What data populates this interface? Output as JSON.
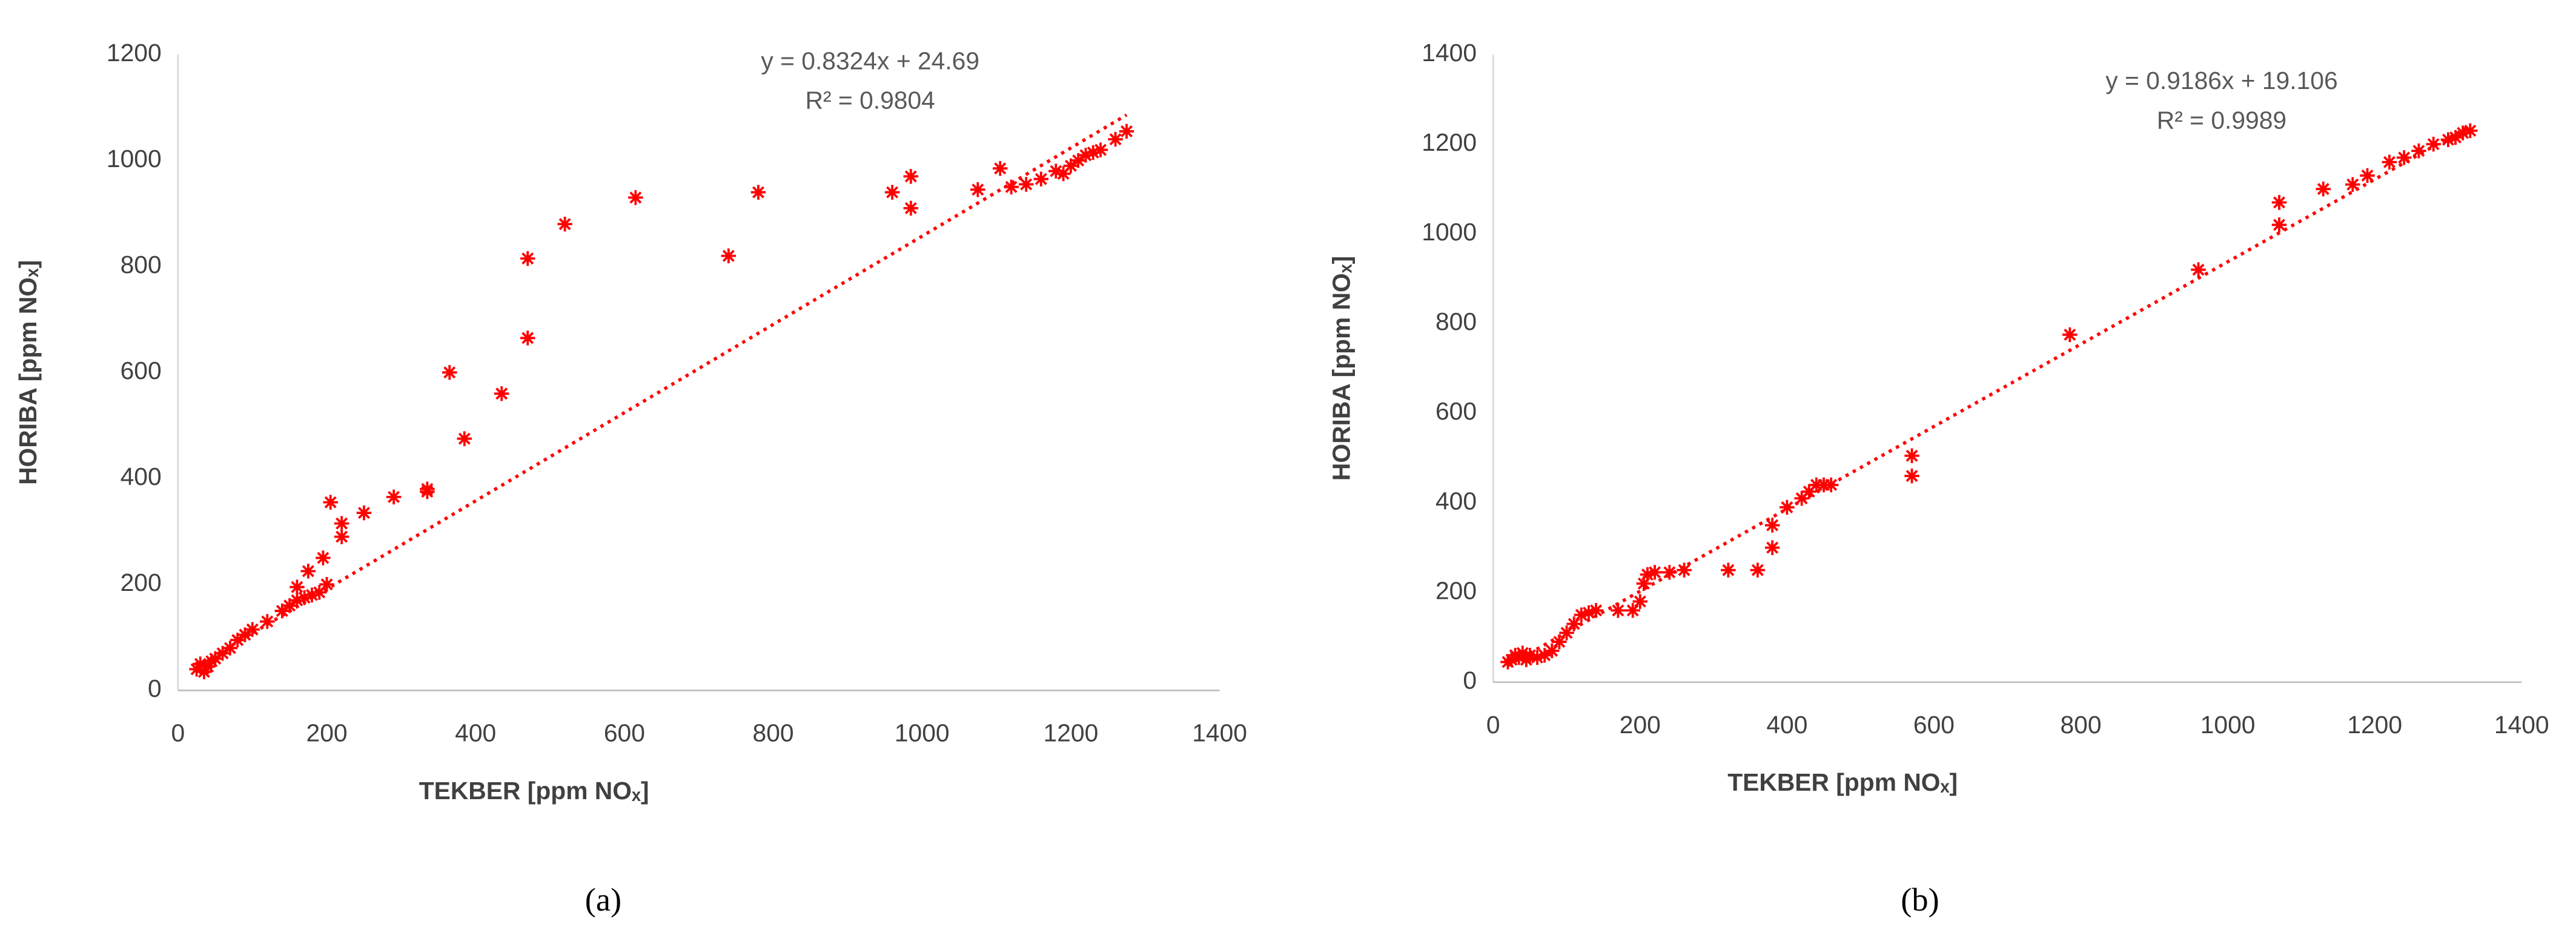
{
  "chart_data": [
    {
      "type": "scatter",
      "panel": "(a)",
      "xlabel": "TEKBER [ppm NOₓ]",
      "ylabel": "HORIBA [ppm NOₓ]",
      "color": "#ff0000",
      "xlim": [
        0,
        1400
      ],
      "xticks": [
        0,
        200,
        400,
        600,
        800,
        1000,
        1200,
        1400
      ],
      "ylim": [
        0,
        1200
      ],
      "yticks": [
        0,
        200,
        400,
        600,
        800,
        1000,
        1200
      ],
      "trendline": {
        "equation": "y = 0.8324x + 24.69",
        "r2": "R² = 0.9804",
        "slope": 0.8324,
        "intercept": 24.69
      },
      "x": [
        25,
        30,
        35,
        40,
        45,
        50,
        60,
        70,
        80,
        90,
        100,
        120,
        140,
        150,
        160,
        170,
        180,
        190,
        200,
        160,
        175,
        195,
        205,
        220,
        220,
        250,
        290,
        335,
        335,
        365,
        385,
        435,
        470,
        470,
        520,
        615,
        740,
        780,
        960,
        985,
        985,
        1075,
        1105,
        1120,
        1140,
        1160,
        1180,
        1190,
        1200,
        1210,
        1220,
        1230,
        1240,
        1260,
        1275
      ],
      "y": [
        40,
        50,
        35,
        45,
        55,
        60,
        70,
        80,
        95,
        105,
        115,
        130,
        150,
        160,
        170,
        175,
        180,
        185,
        200,
        195,
        225,
        250,
        355,
        315,
        290,
        335,
        365,
        375,
        380,
        600,
        475,
        560,
        815,
        665,
        880,
        930,
        820,
        940,
        940,
        970,
        910,
        945,
        985,
        950,
        955,
        965,
        980,
        975,
        990,
        1000,
        1010,
        1015,
        1020,
        1040,
        1055
      ]
    },
    {
      "type": "scatter",
      "panel": "(b)",
      "xlabel": "TEKBER [ppm NOₓ]",
      "ylabel": "HORIBA [ppm NOₓ]",
      "color": "#ff0000",
      "xlim": [
        0,
        1400
      ],
      "xticks": [
        0,
        200,
        400,
        600,
        800,
        1000,
        1200,
        1400
      ],
      "ylim": [
        0,
        1400
      ],
      "yticks": [
        0,
        200,
        400,
        600,
        800,
        1000,
        1200,
        1400
      ],
      "trendline": {
        "equation": "y = 0.9186x + 19.106",
        "r2": "R² = 0.9989",
        "slope": 0.9186,
        "intercept": 19.106
      },
      "x": [
        20,
        25,
        30,
        35,
        40,
        45,
        50,
        60,
        70,
        80,
        90,
        100,
        110,
        120,
        130,
        140,
        170,
        190,
        200,
        205,
        210,
        220,
        240,
        260,
        320,
        360,
        380,
        380,
        400,
        420,
        430,
        440,
        450,
        460,
        570,
        570,
        785,
        960,
        1070,
        1070,
        1130,
        1170,
        1190,
        1220,
        1240,
        1260,
        1280,
        1300,
        1310,
        1320,
        1330
      ],
      "y": [
        45,
        50,
        60,
        55,
        65,
        50,
        60,
        55,
        60,
        70,
        90,
        110,
        130,
        150,
        155,
        160,
        160,
        160,
        180,
        220,
        240,
        245,
        245,
        250,
        250,
        250,
        300,
        350,
        390,
        410,
        425,
        440,
        440,
        440,
        505,
        460,
        775,
        920,
        1070,
        1020,
        1100,
        1110,
        1130,
        1160,
        1170,
        1185,
        1200,
        1210,
        1215,
        1225,
        1230
      ]
    }
  ]
}
